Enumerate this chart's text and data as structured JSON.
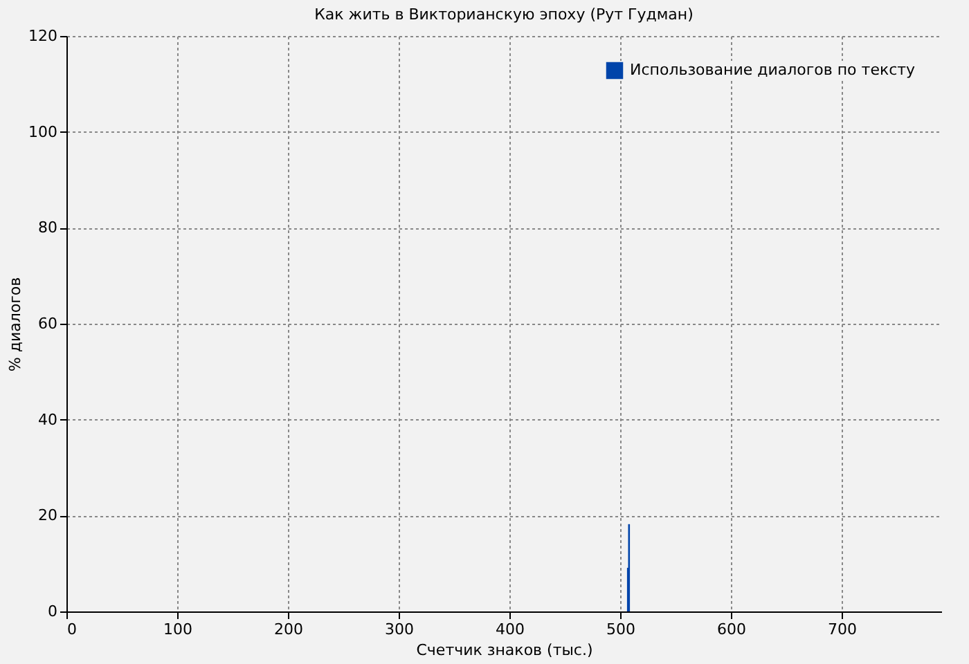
{
  "chart_data": {
    "type": "bar",
    "title": "Как жить в Викторианскую эпоху (Рут Гудман)",
    "xlabel": "Счетчик знаков (тыс.)",
    "ylabel": "% диалогов",
    "x": [
      507,
      508
    ],
    "series": [
      {
        "name": "Использование диалогов по тексту",
        "color": "#0044aa",
        "values": [
          9.1,
          18.2
        ]
      }
    ],
    "xlim": [
      0,
      790
    ],
    "xticks": [
      0,
      100,
      200,
      300,
      400,
      500,
      600,
      700
    ],
    "ylim": [
      0,
      120
    ],
    "yticks": [
      0,
      20,
      40,
      60,
      80,
      100,
      120
    ],
    "grid": true,
    "legend": "top right"
  }
}
